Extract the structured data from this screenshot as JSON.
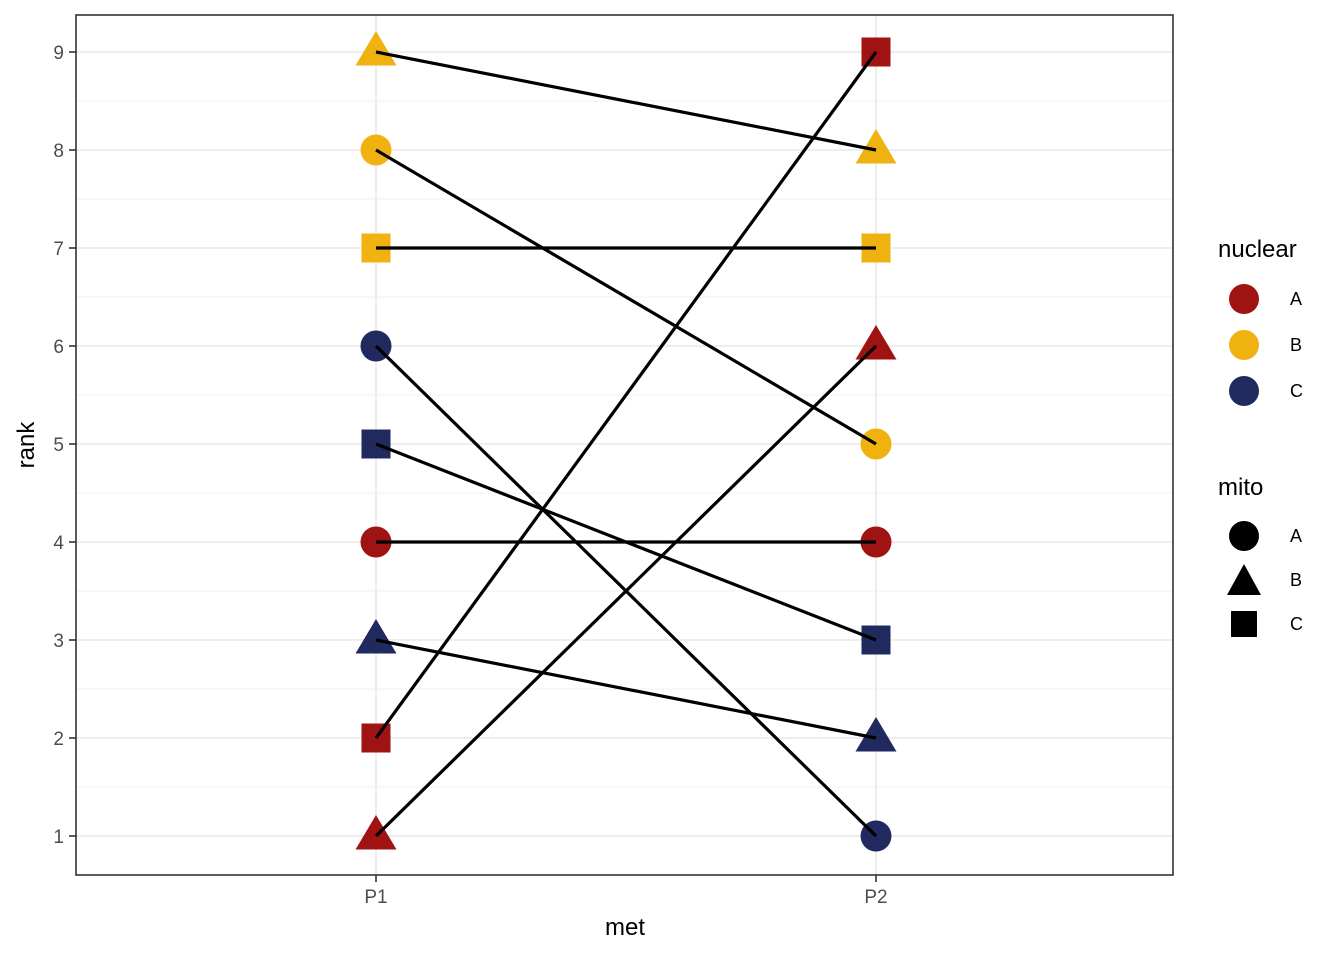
{
  "chart_data": {
    "type": "line",
    "subtype": "slopegraph",
    "title": "",
    "xlabel": "met",
    "ylabel": "rank",
    "categories": [
      "P1",
      "P2"
    ],
    "yticks": [
      1,
      2,
      3,
      4,
      5,
      6,
      7,
      8,
      9
    ],
    "ylim": [
      0.6,
      9.4
    ],
    "grid": {
      "horizontal_major": true,
      "horizontal_minor": true,
      "vertical_major_at_categories": true
    },
    "legend_position": "right",
    "line_color": "#000000",
    "palette": {
      "A": "#A01313",
      "B": "#EFB211",
      "C": "#202A5E"
    },
    "shape_map": {
      "A": "circle",
      "B": "triangle",
      "C": "square"
    },
    "series": [
      {
        "name": "nuclear A / mito A",
        "nuclear": "A",
        "mito": "A",
        "values": [
          4,
          4
        ]
      },
      {
        "name": "nuclear A / mito B",
        "nuclear": "A",
        "mito": "B",
        "values": [
          1,
          6
        ]
      },
      {
        "name": "nuclear A / mito C",
        "nuclear": "A",
        "mito": "C",
        "values": [
          2,
          9
        ]
      },
      {
        "name": "nuclear B / mito A",
        "nuclear": "B",
        "mito": "A",
        "values": [
          8,
          5
        ]
      },
      {
        "name": "nuclear B / mito B",
        "nuclear": "B",
        "mito": "B",
        "values": [
          9,
          8
        ]
      },
      {
        "name": "nuclear B / mito C",
        "nuclear": "B",
        "mito": "C",
        "values": [
          7,
          7
        ]
      },
      {
        "name": "nuclear C / mito A",
        "nuclear": "C",
        "mito": "A",
        "values": [
          6,
          1
        ]
      },
      {
        "name": "nuclear C / mito B",
        "nuclear": "C",
        "mito": "B",
        "values": [
          3,
          2
        ]
      },
      {
        "name": "nuclear C / mito C",
        "nuclear": "C",
        "mito": "C",
        "values": [
          5,
          3
        ]
      }
    ]
  },
  "legend_nuclear": {
    "title": "nuclear",
    "items": [
      {
        "label": "A",
        "color": "#A01313",
        "shape": "circle"
      },
      {
        "label": "B",
        "color": "#EFB211",
        "shape": "circle"
      },
      {
        "label": "C",
        "color": "#202A5E",
        "shape": "circle"
      }
    ]
  },
  "legend_mito": {
    "title": "mito",
    "items": [
      {
        "label": "A",
        "color": "#000000",
        "shape": "circle"
      },
      {
        "label": "B",
        "color": "#000000",
        "shape": "triangle"
      },
      {
        "label": "C",
        "color": "#000000",
        "shape": "square"
      }
    ]
  }
}
